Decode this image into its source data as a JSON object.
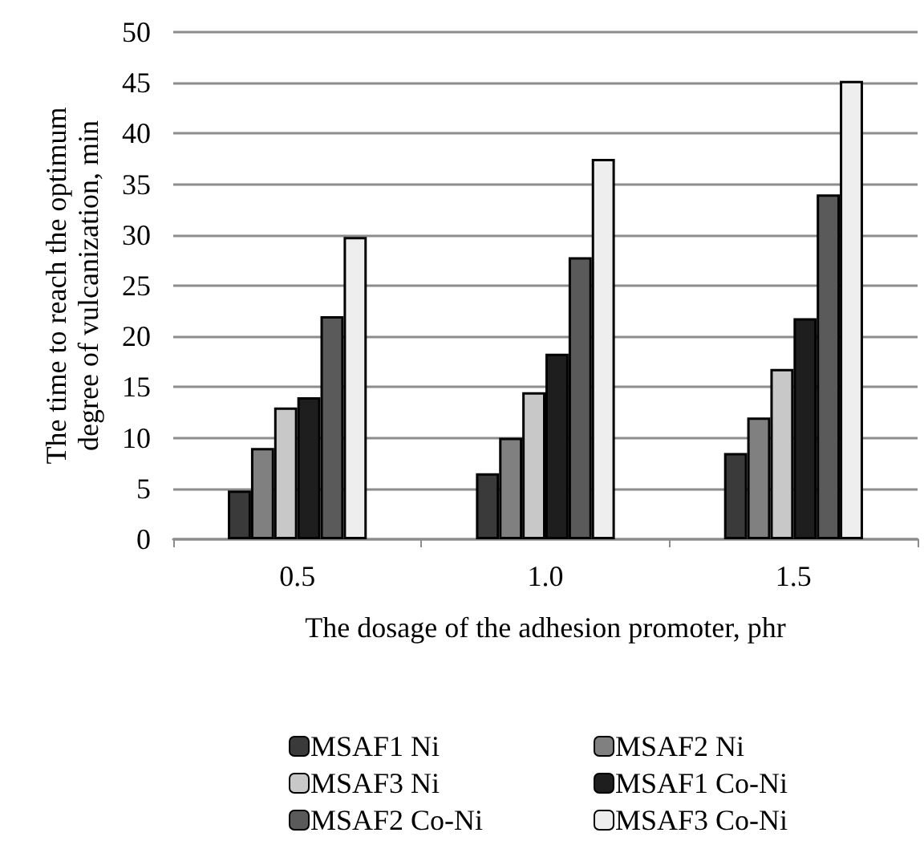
{
  "chart_data": {
    "type": "bar",
    "xlabel": "The dosage of the adhesion promoter, phr",
    "ylabel": "The time to reach the optimum degree of vulcanization, min",
    "categories": [
      "0.5",
      "1.0",
      "1.5"
    ],
    "series": [
      {
        "name": "MSAF1 Ni",
        "color": "#3a3a3a",
        "values": [
          4.8,
          6.5,
          8.5
        ]
      },
      {
        "name": "MSAF2 Ni",
        "color": "#808080",
        "values": [
          9,
          10,
          12
        ]
      },
      {
        "name": "MSAF3 Ni",
        "color": "#c8c8c8",
        "values": [
          13,
          14.5,
          16.8
        ]
      },
      {
        "name": "MSAF1 Co-Ni",
        "color": "#1e1e1e",
        "values": [
          14,
          18.3,
          21.8
        ]
      },
      {
        "name": "MSAF2 Co-Ni",
        "color": "#5a5a5a",
        "values": [
          22,
          27.8,
          34
        ]
      },
      {
        "name": "MSAF3 Co-Ni",
        "color": "#eeeeee",
        "values": [
          29.8,
          37.5,
          45.2
        ]
      }
    ],
    "ylim": [
      0,
      50
    ],
    "yticks": [
      0,
      5,
      10,
      15,
      20,
      25,
      30,
      35,
      40,
      45,
      50
    ],
    "grid": "y",
    "legend": "bottom"
  }
}
